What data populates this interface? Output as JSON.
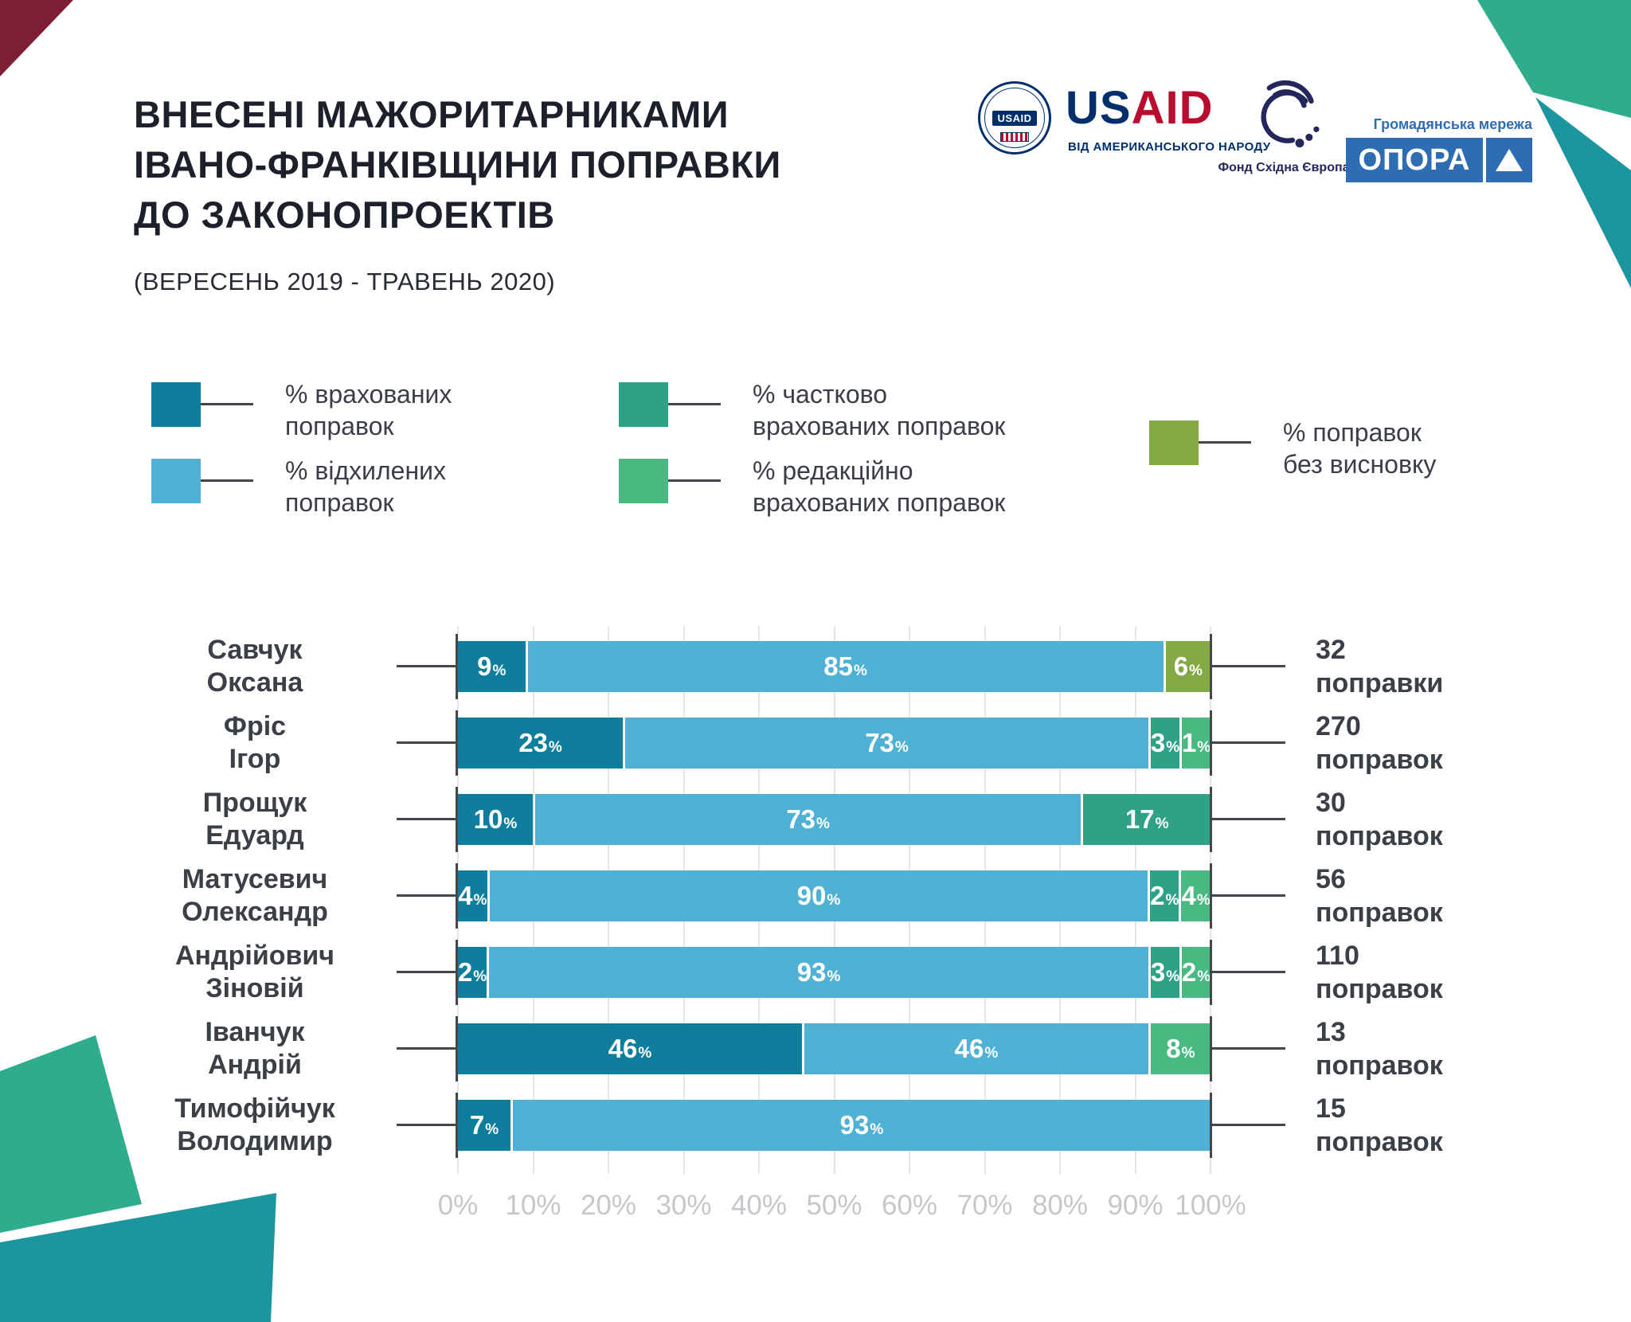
{
  "title": {
    "line1": "ВНЕСЕНІ МАЖОРИТАРНИКАМИ",
    "line2": "ІВАНО-ФРАНКІВЩИНИ ПОПРАВКИ",
    "line3": "ДО ЗАКОНОПРОЕКТІВ",
    "subtitle": "(ВЕРЕСЕНЬ 2019 - ТРАВЕНЬ 2020)"
  },
  "logos": {
    "usaid": {
      "seal_text": "USAID",
      "wordmark_us": "US",
      "wordmark_aid": "AID",
      "tagline": "ВІД АМЕРИКАНСЬКОГО НАРОДУ",
      "navy": "#002F6C",
      "red": "#BA0C2F"
    },
    "eef": {
      "caption": "Фонд Східна Європа",
      "navy": "#23275B"
    },
    "opora": {
      "caption": "Громадянська мережа",
      "name": "ОПОРА",
      "blue": "#2E6DB4"
    }
  },
  "colors": {
    "accepted": "#0F7E9D",
    "rejected": "#4FB2D4",
    "partial": "#2DA287",
    "editorial": "#47B981",
    "no_conclusion": "#82A944",
    "connector": "#43474E",
    "grid": "#E5E6E8",
    "axis_label": "#C4C7CB",
    "text_dark": "#3B4047",
    "deco_green": "#2EAC8B",
    "deco_teal": "#1B95A0",
    "deco_red": "#7D1E35"
  },
  "legend": {
    "items": [
      {
        "key": "accepted",
        "color": "#0F7E9D",
        "line1": "% врахованих",
        "line2": "поправок"
      },
      {
        "key": "rejected",
        "color": "#4FB2D4",
        "line1": "% відхилених",
        "line2": "поправок"
      },
      {
        "key": "partial",
        "color": "#2DA287",
        "line1": "% частково",
        "line2": "врахованих поправок"
      },
      {
        "key": "editorial",
        "color": "#47B981",
        "line1": "% редакційно",
        "line2": "врахованих поправок"
      },
      {
        "key": "no_conclusion",
        "color": "#82A944",
        "line1": "% поправок",
        "line2": "без висновку"
      }
    ]
  },
  "chart_data": {
    "type": "bar",
    "stacked": true,
    "orientation": "horizontal",
    "unit": "%",
    "xlim": [
      0,
      100
    ],
    "grid": true,
    "x_ticks": [
      "0%",
      "10%",
      "20%",
      "30%",
      "40%",
      "50%",
      "60%",
      "70%",
      "80%",
      "90%",
      "100%"
    ],
    "series_keys": [
      "accepted",
      "rejected",
      "partial",
      "editorial",
      "no_conclusion"
    ],
    "rows": [
      {
        "name_line1": "Савчук",
        "name_line2": "Оксана",
        "total_line1": "32",
        "total_line2": "поправки",
        "segments": [
          {
            "key": "accepted",
            "value": 9
          },
          {
            "key": "rejected",
            "value": 85
          },
          {
            "key": "no_conclusion",
            "value": 6
          }
        ]
      },
      {
        "name_line1": "Фріс",
        "name_line2": "Ігор",
        "total_line1": "270",
        "total_line2": "поправок",
        "segments": [
          {
            "key": "accepted",
            "value": 23
          },
          {
            "key": "rejected",
            "value": 73
          },
          {
            "key": "partial",
            "value": 3
          },
          {
            "key": "editorial",
            "value": 1
          }
        ]
      },
      {
        "name_line1": "Прощук",
        "name_line2": "Едуард",
        "total_line1": "30",
        "total_line2": "поправок",
        "segments": [
          {
            "key": "accepted",
            "value": 10
          },
          {
            "key": "rejected",
            "value": 73
          },
          {
            "key": "partial",
            "value": 17
          }
        ]
      },
      {
        "name_line1": "Матусевич",
        "name_line2": "Олександр",
        "total_line1": "56",
        "total_line2": "поправок",
        "segments": [
          {
            "key": "accepted",
            "value": 4
          },
          {
            "key": "rejected",
            "value": 90
          },
          {
            "key": "partial",
            "value": 2
          },
          {
            "key": "editorial",
            "value": 4
          }
        ]
      },
      {
        "name_line1": "Андрійович",
        "name_line2": "Зіновій",
        "total_line1": "110",
        "total_line2": "поправок",
        "segments": [
          {
            "key": "accepted",
            "value": 2
          },
          {
            "key": "rejected",
            "value": 93
          },
          {
            "key": "partial",
            "value": 3
          },
          {
            "key": "editorial",
            "value": 2
          }
        ]
      },
      {
        "name_line1": "Іванчук",
        "name_line2": "Андрій",
        "total_line1": "13",
        "total_line2": "поправок",
        "segments": [
          {
            "key": "accepted",
            "value": 46
          },
          {
            "key": "rejected",
            "value": 46
          },
          {
            "key": "editorial",
            "value": 8
          }
        ]
      },
      {
        "name_line1": "Тимофійчук",
        "name_line2": "Володимир",
        "total_line1": "15",
        "total_line2": "поправок",
        "segments": [
          {
            "key": "accepted",
            "value": 7
          },
          {
            "key": "rejected",
            "value": 93
          }
        ]
      }
    ]
  }
}
